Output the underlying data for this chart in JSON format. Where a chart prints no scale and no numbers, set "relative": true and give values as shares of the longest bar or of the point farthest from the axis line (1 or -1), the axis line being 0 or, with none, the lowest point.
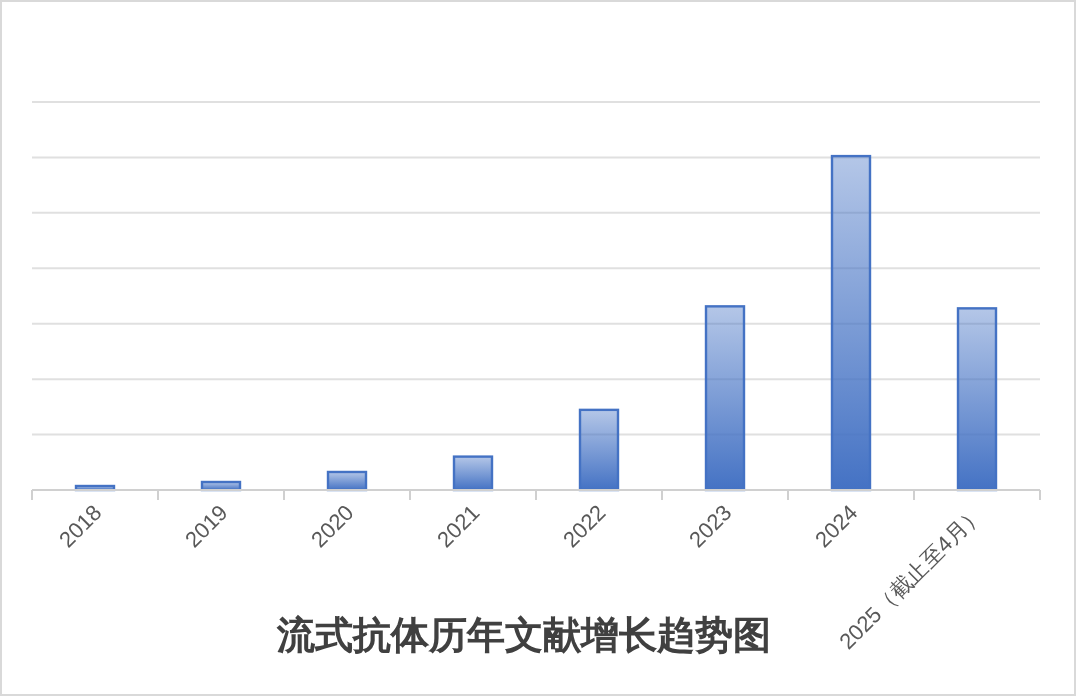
{
  "chart_data": {
    "type": "bar",
    "title": "流式抗体历年文献增长趋势图",
    "categories": [
      "2018",
      "2019",
      "2020",
      "2021",
      "2022",
      "2023",
      "2024",
      "2025（截止至4月）"
    ],
    "values": [
      0.012,
      0.024,
      0.054,
      0.1,
      0.24,
      0.55,
      1,
      0.544
    ],
    "color": "#4472c4",
    "relative": true,
    "grid": "y"
  }
}
